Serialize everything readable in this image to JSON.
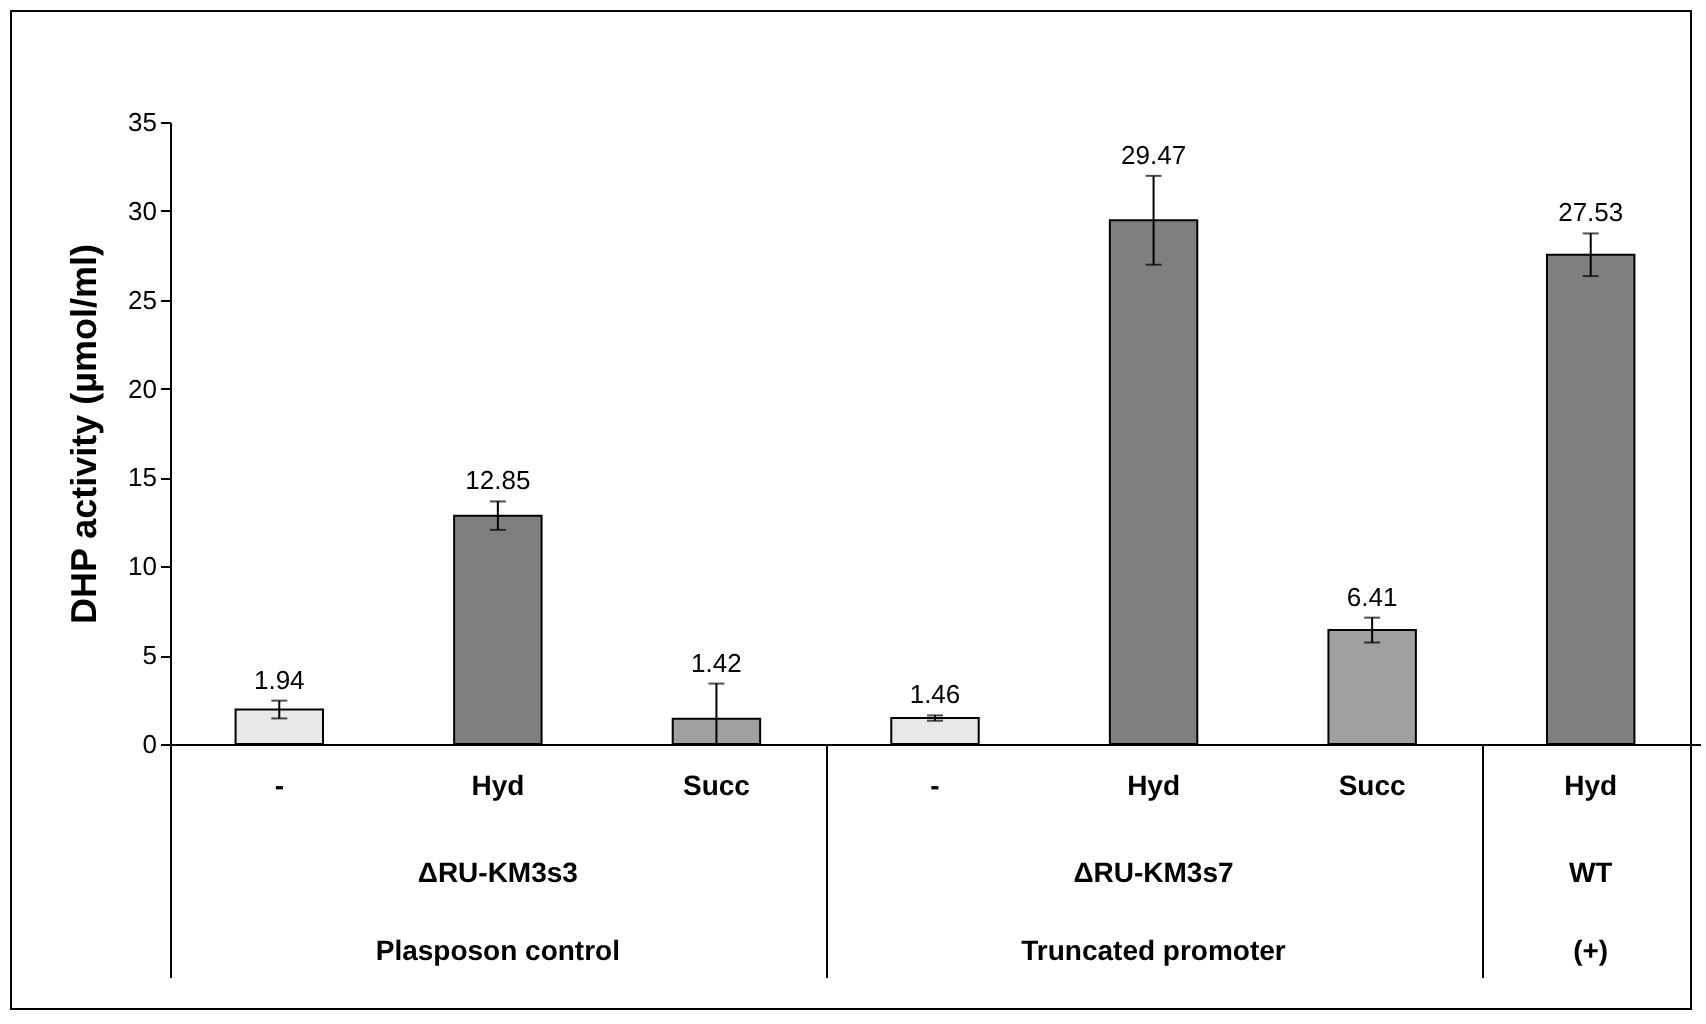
{
  "chart_data": {
    "type": "bar",
    "ylabel": "DHP activity (µmol/ml)",
    "categories": [
      "-",
      "Hyd",
      "Succ",
      "-",
      "Hyd",
      "Succ",
      "Hyd"
    ],
    "values": [
      1.94,
      12.85,
      1.42,
      1.46,
      29.47,
      6.41,
      27.53
    ],
    "errors": [
      0.5,
      0.8,
      [
        0,
        3.4
      ],
      0.15,
      2.5,
      0.7,
      1.2
    ],
    "colors": [
      "#e8e8e8",
      "#7f7f7f",
      "#a0a0a0",
      "#e8e8e8",
      "#7f7f7f",
      "#a0a0a0",
      "#7f7f7f"
    ],
    "data_labels": true,
    "ylim": [
      0,
      35
    ],
    "yticks": [
      0,
      5,
      10,
      15,
      20,
      25,
      30,
      35
    ],
    "annotations": [
      "ΔRU-KM3s3",
      "ΔRU-KM3s7",
      "WT",
      "Plasposon control",
      "Truncated promoter",
      "(+)"
    ]
  }
}
